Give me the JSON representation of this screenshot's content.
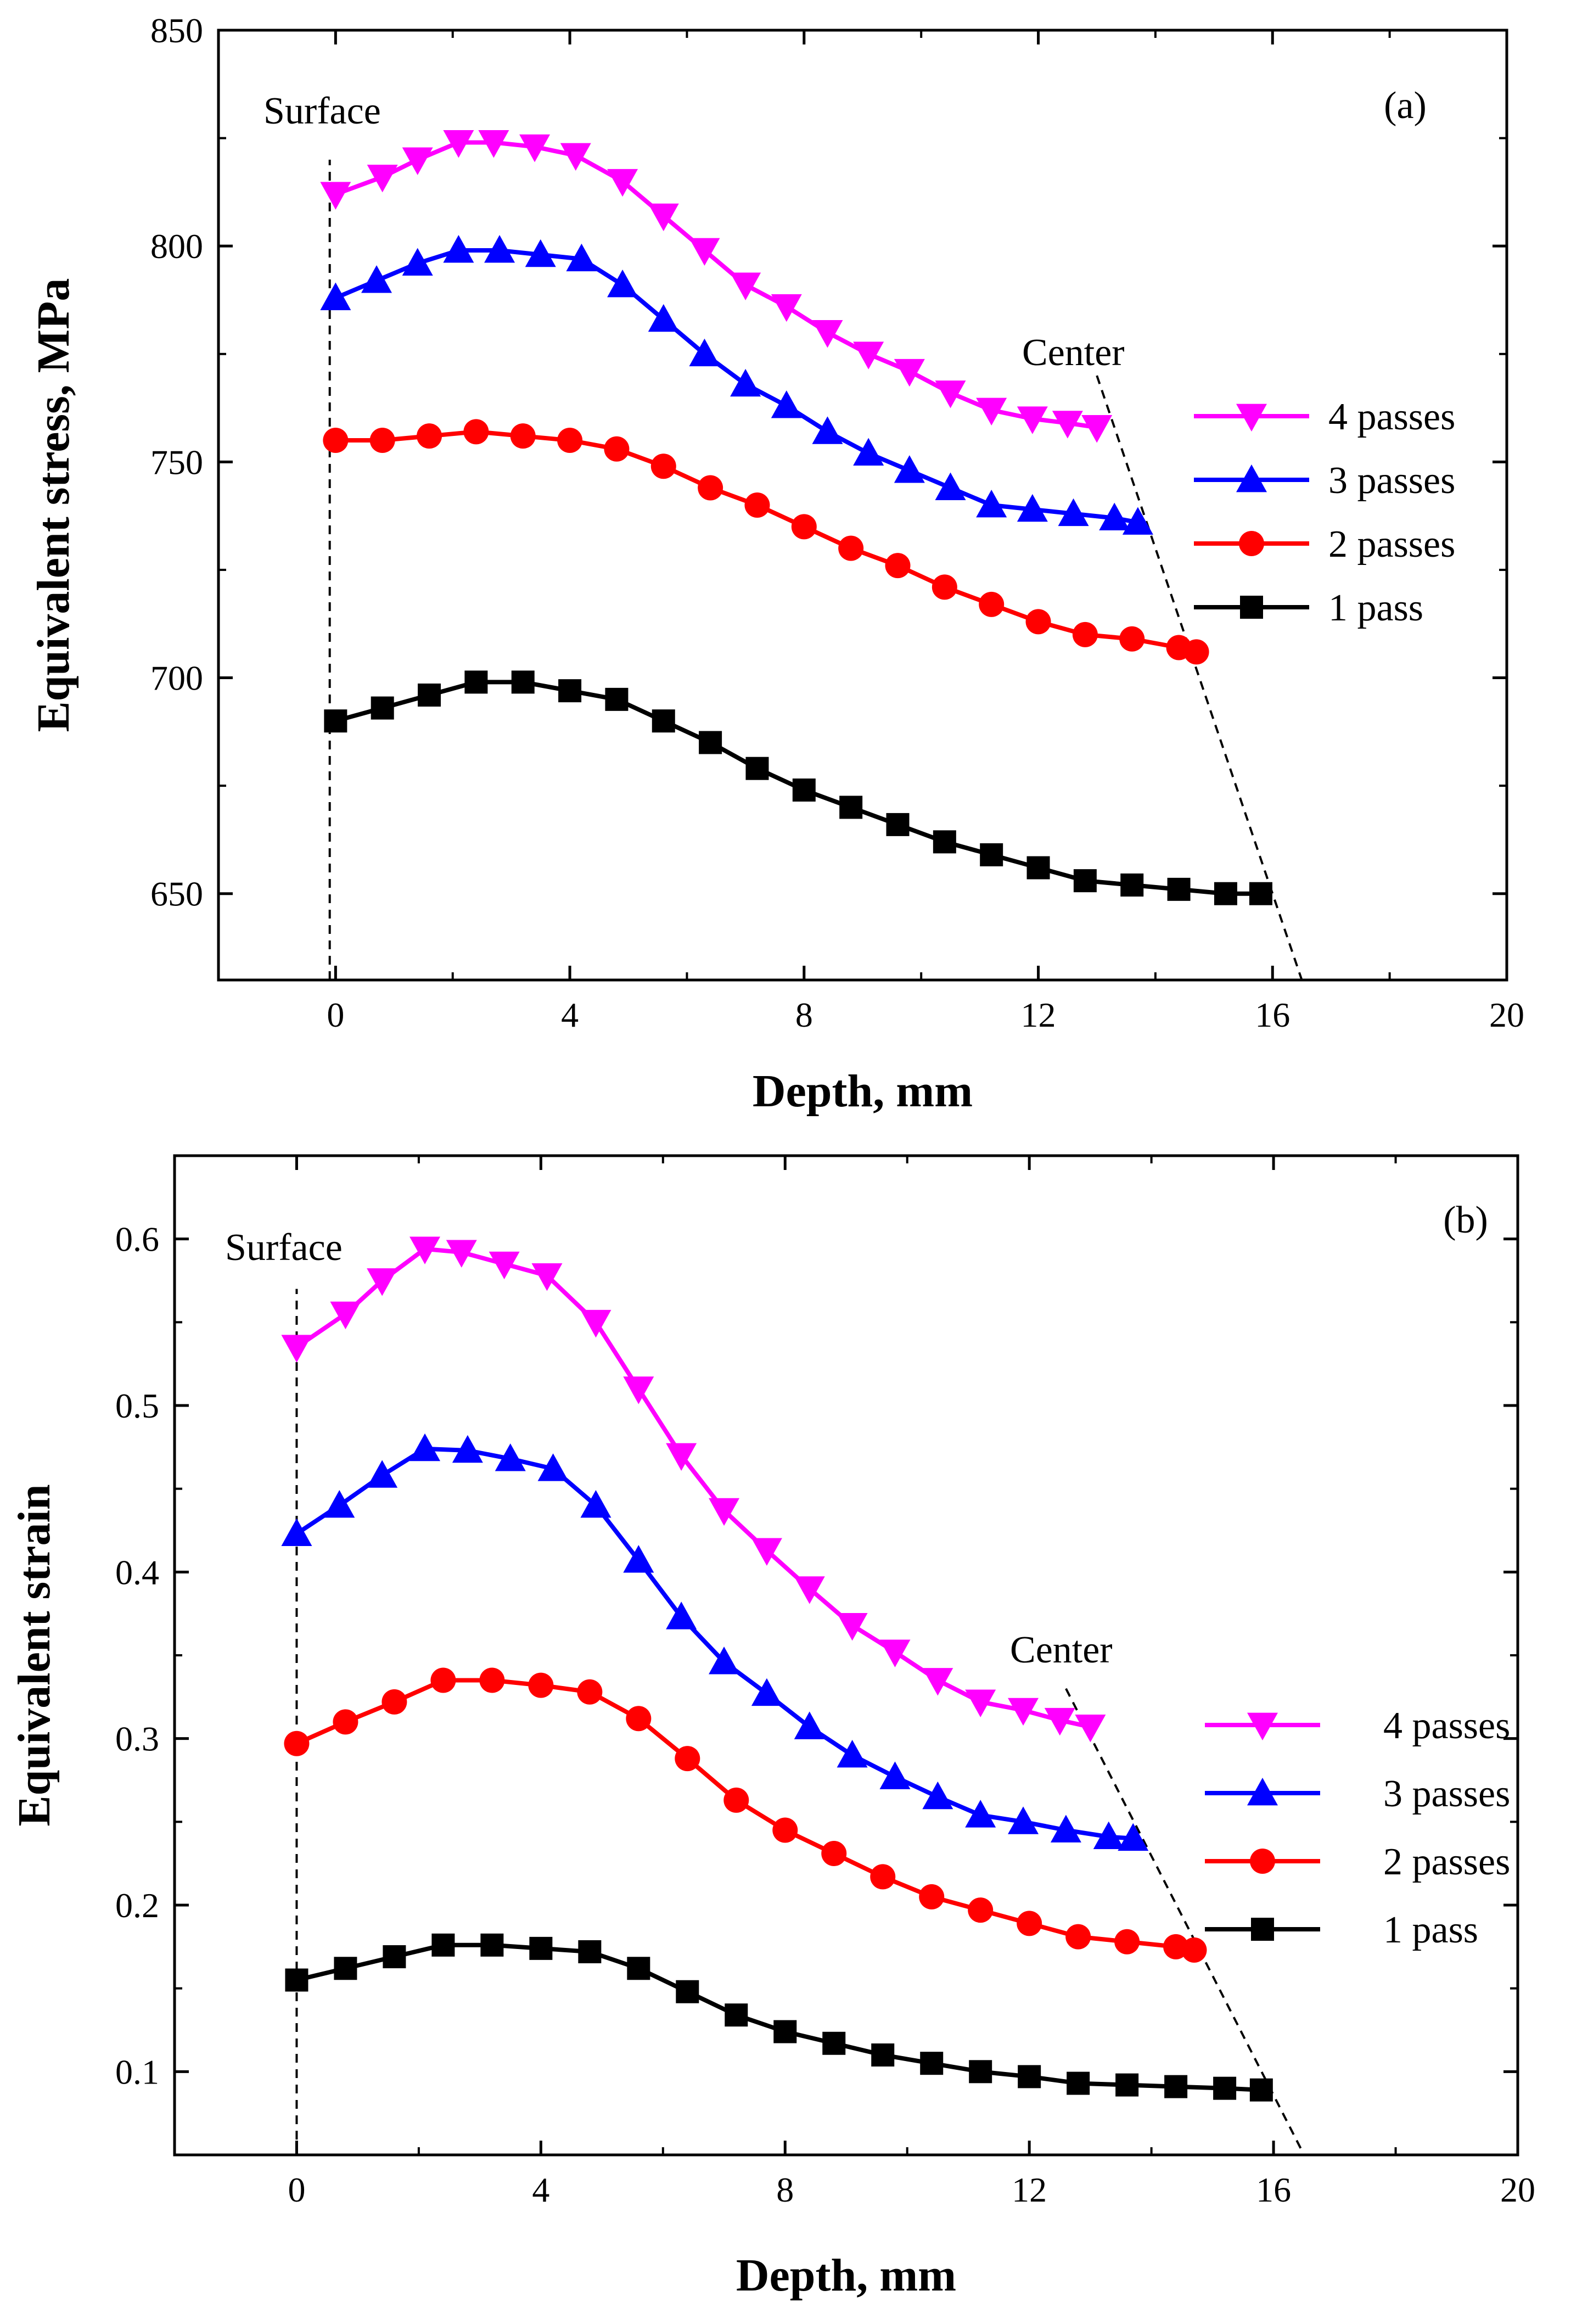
{
  "chart_data": [
    {
      "type": "line",
      "panel_label": "(a)",
      "xlabel": "Depth, mm",
      "ylabel": "Equivalent stress,   MPa",
      "xlim": [
        -2,
        20
      ],
      "ylim": [
        630,
        850
      ],
      "x_ticks": [
        0,
        4,
        8,
        12,
        16,
        20
      ],
      "y_ticks": [
        650,
        700,
        750,
        800,
        850
      ],
      "annotations": {
        "surface": "Surface",
        "center": "Center"
      },
      "surface_line": [
        [
          -0.1,
          620
        ],
        [
          -0.1,
          820
        ]
      ],
      "center_line": [
        [
          13.0,
          770
        ],
        [
          16.5,
          625
        ]
      ],
      "legend_position": "right",
      "series": [
        {
          "name": "4 passes",
          "color": "#ff00ff",
          "marker": "triangle-down",
          "x": [
            0.0,
            0.8,
            1.4,
            2.1,
            2.7,
            3.4,
            4.1,
            4.9,
            5.6,
            6.3,
            7.0,
            7.7,
            8.4,
            9.1,
            9.8,
            10.5,
            11.2,
            11.9,
            12.5,
            13.0
          ],
          "y": [
            812,
            816,
            820,
            824,
            824,
            823,
            821,
            815,
            807,
            799,
            791,
            786,
            780,
            775,
            771,
            766,
            762,
            760,
            759,
            758
          ]
        },
        {
          "name": "3 passes",
          "color": "#0000ff",
          "marker": "triangle-up",
          "x": [
            0.0,
            0.7,
            1.4,
            2.1,
            2.8,
            3.5,
            4.2,
            4.9,
            5.6,
            6.3,
            7.0,
            7.7,
            8.4,
            9.1,
            9.8,
            10.5,
            11.2,
            11.9,
            12.6,
            13.3,
            13.7
          ],
          "y": [
            788,
            792,
            796,
            799,
            799,
            798,
            797,
            791,
            783,
            775,
            768,
            763,
            757,
            752,
            748,
            744,
            740,
            739,
            738,
            737,
            736
          ]
        },
        {
          "name": "2 passes",
          "color": "#ff0000",
          "marker": "circle",
          "x": [
            0.0,
            0.8,
            1.6,
            2.4,
            3.2,
            4.0,
            4.8,
            5.6,
            6.4,
            7.2,
            8.0,
            8.8,
            9.6,
            10.4,
            11.2,
            12.0,
            12.8,
            13.6,
            14.4,
            14.7
          ],
          "y": [
            755,
            755,
            756,
            757,
            756,
            755,
            753,
            749,
            744,
            740,
            735,
            730,
            726,
            721,
            717,
            713,
            710,
            709,
            707,
            706
          ]
        },
        {
          "name": "1 pass",
          "color": "#000000",
          "marker": "square",
          "x": [
            0.0,
            0.8,
            1.6,
            2.4,
            3.2,
            4.0,
            4.8,
            5.6,
            6.4,
            7.2,
            8.0,
            8.8,
            9.6,
            10.4,
            11.2,
            12.0,
            12.8,
            13.6,
            14.4,
            15.2,
            15.8
          ],
          "y": [
            690,
            693,
            696,
            699,
            699,
            697,
            695,
            690,
            685,
            679,
            674,
            670,
            666,
            662,
            659,
            656,
            653,
            652,
            651,
            650,
            650
          ]
        }
      ]
    },
    {
      "type": "line",
      "panel_label": "(b)",
      "xlabel": "Depth, mm",
      "ylabel": "Equivalent strain",
      "xlim": [
        -2,
        20
      ],
      "ylim": [
        0.05,
        0.65
      ],
      "x_ticks": [
        0,
        4,
        8,
        12,
        16,
        20
      ],
      "y_ticks": [
        0.1,
        0.2,
        0.3,
        0.4,
        0.5,
        0.6
      ],
      "annotations": {
        "surface": "Surface",
        "center": "Center"
      },
      "surface_line": [
        [
          0.0,
          0.05
        ],
        [
          0.0,
          0.57
        ]
      ],
      "center_line": [
        [
          12.6,
          0.33
        ],
        [
          16.5,
          0.05
        ]
      ],
      "legend_position": "right",
      "series": [
        {
          "name": "4 passes",
          "color": "#ff00ff",
          "marker": "triangle-down",
          "x": [
            0.0,
            0.8,
            1.4,
            2.1,
            2.7,
            3.4,
            4.1,
            4.9,
            5.6,
            6.3,
            7.0,
            7.7,
            8.4,
            9.1,
            9.8,
            10.5,
            11.2,
            11.9,
            12.5,
            13.0
          ],
          "y": [
            0.535,
            0.555,
            0.575,
            0.594,
            0.592,
            0.585,
            0.578,
            0.55,
            0.51,
            0.47,
            0.437,
            0.413,
            0.39,
            0.368,
            0.352,
            0.335,
            0.322,
            0.317,
            0.311,
            0.307
          ]
        },
        {
          "name": "3 passes",
          "color": "#0000ff",
          "marker": "triangle-up",
          "x": [
            0.0,
            0.7,
            1.4,
            2.1,
            2.8,
            3.5,
            4.2,
            4.9,
            5.6,
            6.3,
            7.0,
            7.7,
            8.4,
            9.1,
            9.8,
            10.5,
            11.2,
            11.9,
            12.6,
            13.3,
            13.7
          ],
          "y": [
            0.423,
            0.44,
            0.458,
            0.474,
            0.473,
            0.468,
            0.462,
            0.44,
            0.407,
            0.373,
            0.346,
            0.327,
            0.307,
            0.29,
            0.277,
            0.265,
            0.254,
            0.25,
            0.245,
            0.241,
            0.24
          ]
        },
        {
          "name": "2 passes",
          "color": "#ff0000",
          "marker": "circle",
          "x": [
            0.0,
            0.8,
            1.6,
            2.4,
            3.2,
            4.0,
            4.8,
            5.6,
            6.4,
            7.2,
            8.0,
            8.8,
            9.6,
            10.4,
            11.2,
            12.0,
            12.8,
            13.6,
            14.4,
            14.7
          ],
          "y": [
            0.297,
            0.31,
            0.322,
            0.335,
            0.335,
            0.332,
            0.328,
            0.312,
            0.288,
            0.263,
            0.245,
            0.231,
            0.217,
            0.205,
            0.197,
            0.189,
            0.181,
            0.178,
            0.175,
            0.173
          ]
        },
        {
          "name": "1 pass",
          "color": "#000000",
          "marker": "square",
          "x": [
            0.0,
            0.8,
            1.6,
            2.4,
            3.2,
            4.0,
            4.8,
            5.6,
            6.4,
            7.2,
            8.0,
            8.8,
            9.6,
            10.4,
            11.2,
            12.0,
            12.8,
            13.6,
            14.4,
            15.2,
            15.8
          ],
          "y": [
            0.155,
            0.162,
            0.169,
            0.176,
            0.176,
            0.174,
            0.172,
            0.162,
            0.148,
            0.134,
            0.124,
            0.117,
            0.11,
            0.105,
            0.1,
            0.097,
            0.093,
            0.092,
            0.091,
            0.09,
            0.089
          ]
        }
      ]
    }
  ]
}
